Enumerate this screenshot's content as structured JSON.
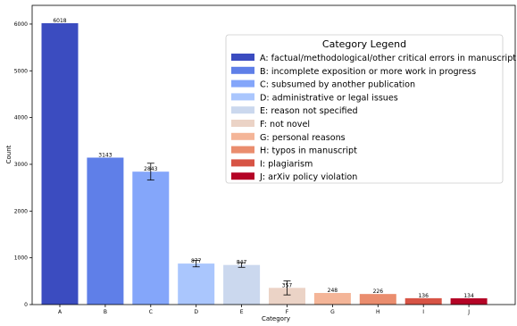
{
  "chart_data": {
    "type": "bar",
    "title": "",
    "xlabel": "Category",
    "ylabel": "Count",
    "ylim": [
      0,
      6400
    ],
    "yticks": [
      0,
      1000,
      2000,
      3000,
      4000,
      5000,
      6000
    ],
    "grid": false,
    "legend_position": "top-right",
    "legend_title": "Category Legend",
    "categories": [
      "A",
      "B",
      "C",
      "D",
      "E",
      "F",
      "G",
      "H",
      "I",
      "J"
    ],
    "values": [
      6018,
      3143,
      2843,
      877,
      847,
      357,
      248,
      226,
      136,
      134
    ],
    "value_labels": [
      "6018",
      "3143",
      "2843",
      "877",
      "847",
      "357",
      "248",
      "226",
      "136",
      "134"
    ],
    "error": [
      0,
      0,
      180,
      70,
      50,
      150,
      0,
      0,
      0,
      0
    ],
    "colors": [
      "#3b4cc0",
      "#5f7fe8",
      "#84a6fa",
      "#aac6fd",
      "#cbd8ee",
      "#ebd3c6",
      "#f4b598",
      "#ea8d6e",
      "#d75445",
      "#b40426"
    ],
    "legend_labels": [
      "A: factual/methodological/other critical errors in manuscript",
      "B: incomplete exposition or more work in progress",
      "C: subsumed by another publication",
      "D: administrative or legal issues",
      "E: reason not specified",
      "F: not novel",
      "G: personal reasons",
      "H: typos in manuscript",
      "I: plagiarism",
      "J: arXiv policy violation"
    ]
  }
}
